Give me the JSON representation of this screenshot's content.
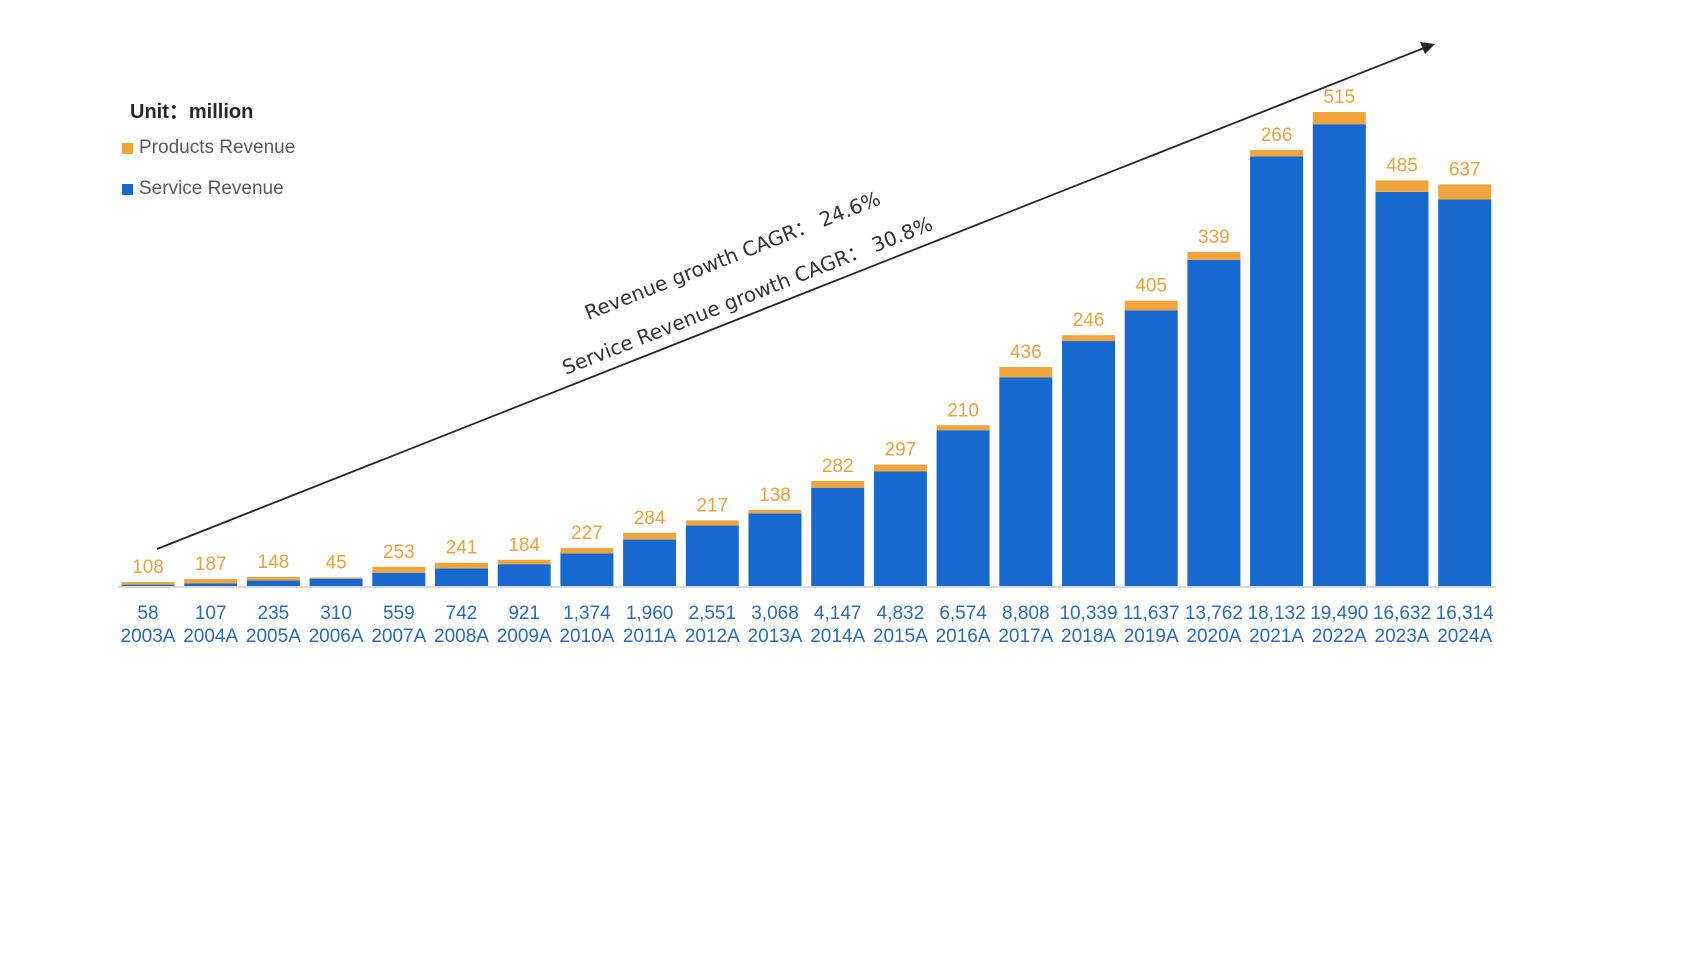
{
  "chart_data": {
    "type": "bar",
    "stacked": true,
    "unit_label": "Unit：million",
    "categories": [
      "2003A",
      "2004A",
      "2005A",
      "2006A",
      "2007A",
      "2008A",
      "2009A",
      "2010A",
      "2011A",
      "2012A",
      "2013A",
      "2014A",
      "2015A",
      "2016A",
      "2017A",
      "2018A",
      "2019A",
      "2020A",
      "2021A",
      "2022A",
      "2023A",
      "2024A"
    ],
    "series": [
      {
        "name": "Service Revenue",
        "color": "#1769CF",
        "values": [
          58,
          107,
          235,
          310,
          559,
          742,
          921,
          1374,
          1960,
          2551,
          3068,
          4147,
          4832,
          6574,
          8808,
          10339,
          11637,
          13762,
          18132,
          19490,
          16632,
          16314
        ]
      },
      {
        "name": "Products Revenue",
        "color": "#F0A43E",
        "values": [
          108,
          187,
          148,
          45,
          253,
          241,
          184,
          227,
          284,
          217,
          138,
          282,
          297,
          210,
          436,
          246,
          405,
          339,
          266,
          515,
          485,
          637
        ]
      }
    ],
    "ylim": [
      0,
      20005
    ],
    "grid": false,
    "legend": "top-left",
    "annotations": [
      "Revenue growth CAGR：  24.6%",
      "Service Revenue growth CAGR：  30.8%"
    ],
    "trend_arrow": true
  }
}
